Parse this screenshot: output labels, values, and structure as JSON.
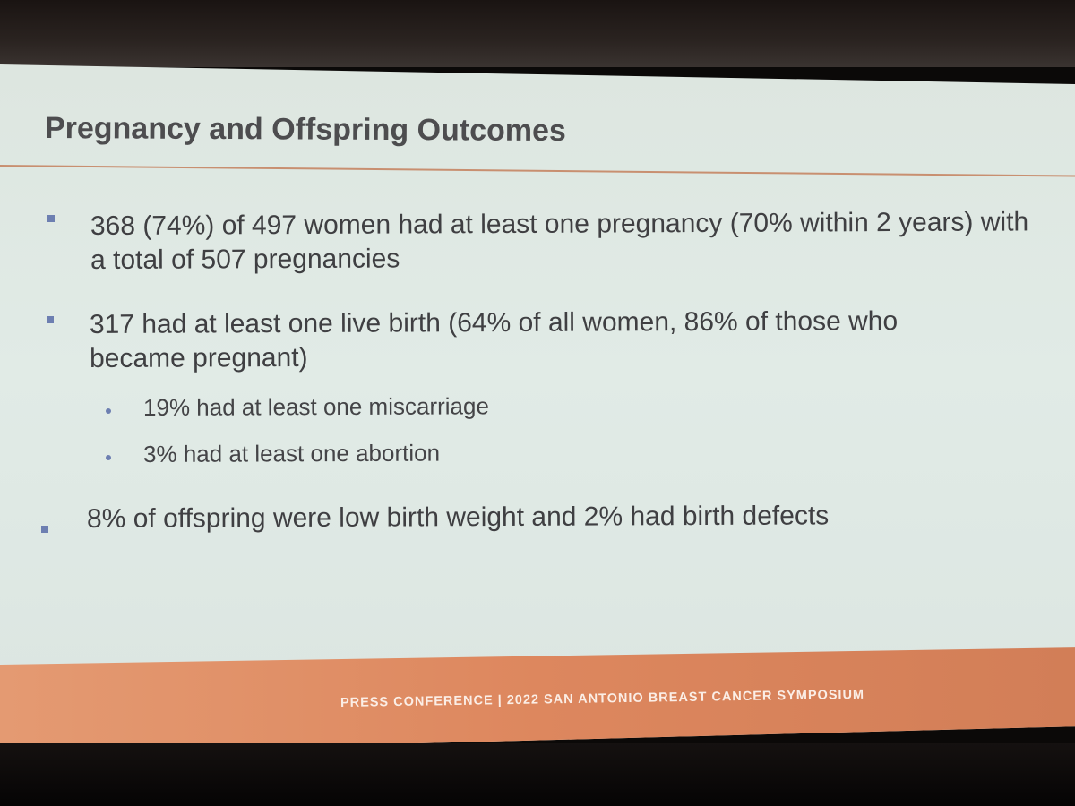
{
  "slide": {
    "title": "Pregnancy and Offspring Outcomes",
    "bullets": [
      {
        "text": "368 (74%) of 497 women had at least one pregnancy (70% within 2 years) with a total of 507 pregnancies"
      },
      {
        "text": "317 had at least one live birth (64% of all women, 86% of those who became pregnant)",
        "sub_bullets": [
          "19% had at least one miscarriage",
          "3% had at least one abortion"
        ]
      },
      {
        "text": "8% of offspring were low birth weight and 2% had birth defects"
      }
    ],
    "footer": "PRESS CONFERENCE | 2022 SAN ANTONIO BREAST CANCER SYMPOSIUM"
  },
  "colors": {
    "slide_background": "#e0e9e4",
    "title_text": "#4d4d4f",
    "accent_rule": "#c88f70",
    "bullet_marker": "#6d7fb1",
    "footer_band": "#dd875e",
    "footer_text": "#fbeee6"
  }
}
